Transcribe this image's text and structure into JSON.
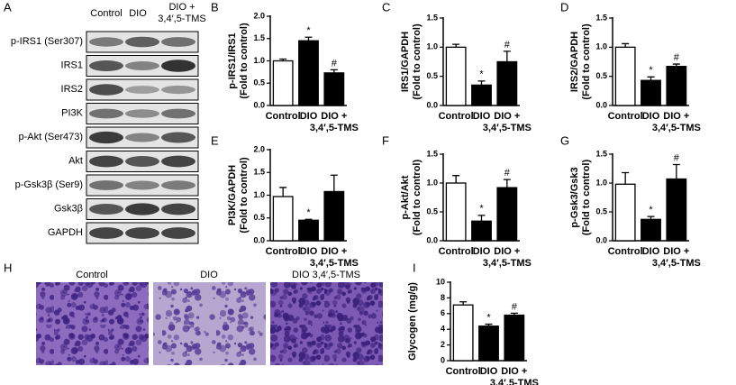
{
  "blot": {
    "panel": "A",
    "columns": [
      "Control",
      "DIO",
      [
        "DIO +",
        "3,4′,5-TMS"
      ]
    ],
    "rows": [
      "p-IRS1 (Ser307)",
      "IRS1",
      "IRS2",
      "PI3K",
      "p-Akt (Ser473)",
      "Akt",
      "p-Gsk3β (Ser9)",
      "Gsk3β",
      "GAPDH"
    ]
  },
  "histology": {
    "panel": "H",
    "images": [
      "Control",
      "DIO",
      "DIO 3,4′,5-TMS"
    ]
  },
  "chart_data": [
    {
      "type": "bar",
      "panel": "B",
      "ylabel": [
        "p-IRS1/IRS1",
        "(Fold to control)"
      ],
      "categories": [
        "Control",
        "DIO",
        [
          "DIO +",
          "3,4′,5-TMS"
        ]
      ],
      "values": [
        1.0,
        1.45,
        0.73
      ],
      "errors": [
        0.04,
        0.08,
        0.07
      ],
      "colors": [
        "#ffffff",
        "#000000",
        "#000000"
      ],
      "ylim": [
        0,
        2
      ],
      "yticks": [
        {
          "value": 0,
          "label": "0.0"
        },
        0.5,
        {
          "value": 1,
          "label": "1.0"
        },
        1.5,
        {
          "value": 2,
          "label": "2.0"
        }
      ],
      "annotations": [
        {
          "index": 1,
          "text": "*"
        },
        {
          "index": 2,
          "text": "#"
        }
      ]
    },
    {
      "type": "bar",
      "panel": "C",
      "ylabel": [
        "IRS1/GAPDH",
        "(Fold to control)"
      ],
      "categories": [
        "Control",
        "DIO",
        [
          "DIO +",
          "3,4′,5-TMS"
        ]
      ],
      "values": [
        1.0,
        0.35,
        0.75
      ],
      "errors": [
        0.05,
        0.07,
        0.18
      ],
      "colors": [
        "#ffffff",
        "#000000",
        "#000000"
      ],
      "ylim": [
        0,
        1.5
      ],
      "yticks": [
        {
          "value": 0,
          "label": "0.0"
        },
        0.5,
        {
          "value": 1,
          "label": "1.0"
        },
        1.5
      ],
      "annotations": [
        {
          "index": 1,
          "text": "*"
        },
        {
          "index": 2,
          "text": "#"
        }
      ]
    },
    {
      "type": "bar",
      "panel": "D",
      "ylabel": [
        "IRS2/GAPDH",
        "(Fold to control)"
      ],
      "categories": [
        "Control",
        "DIO",
        [
          "DIO +",
          "3,4′,5-TMS"
        ]
      ],
      "values": [
        1.0,
        0.43,
        0.67
      ],
      "errors": [
        0.06,
        0.06,
        0.04
      ],
      "colors": [
        "#ffffff",
        "#000000",
        "#000000"
      ],
      "ylim": [
        0,
        1.5
      ],
      "yticks": [
        {
          "value": 0,
          "label": "0.0"
        },
        0.5,
        {
          "value": 1,
          "label": "1.0"
        },
        1.5
      ],
      "annotations": [
        {
          "index": 1,
          "text": "*"
        },
        {
          "index": 2,
          "text": "#"
        }
      ]
    },
    {
      "type": "bar",
      "panel": "E",
      "ylabel": [
        "PI3K/GAPDH",
        "(Fold to control)"
      ],
      "categories": [
        "Control",
        "DIO",
        [
          "DIO +",
          "3,4′,5-TMS"
        ]
      ],
      "values": [
        0.97,
        0.45,
        1.08
      ],
      "errors": [
        0.2,
        0.02,
        0.36
      ],
      "colors": [
        "#ffffff",
        "#000000",
        "#000000"
      ],
      "ylim": [
        0,
        2
      ],
      "yticks": [
        {
          "value": 0,
          "label": "0.0"
        },
        0.5,
        {
          "value": 1,
          "label": "1.0"
        },
        1.5,
        {
          "value": 2,
          "label": "2.0"
        }
      ],
      "annotations": [
        {
          "index": 1,
          "text": "*"
        }
      ]
    },
    {
      "type": "bar",
      "panel": "F",
      "ylabel": [
        "p-Akt/Akt",
        "(Fold to control)"
      ],
      "categories": [
        "Control",
        "DIO",
        [
          "DIO +",
          "3,4′,5-TMS"
        ]
      ],
      "values": [
        1.0,
        0.34,
        0.92
      ],
      "errors": [
        0.13,
        0.1,
        0.14
      ],
      "colors": [
        "#ffffff",
        "#000000",
        "#000000"
      ],
      "ylim": [
        0,
        1.5
      ],
      "yticks": [
        {
          "value": 0,
          "label": "0.0"
        },
        0.5,
        {
          "value": 1,
          "label": "1.0"
        },
        1.5
      ],
      "annotations": [
        {
          "index": 1,
          "text": "*"
        },
        {
          "index": 2,
          "text": "#"
        }
      ]
    },
    {
      "type": "bar",
      "panel": "G",
      "ylabel": [
        "p-Gsk3/Gsk3",
        "(Fold to control)"
      ],
      "categories": [
        "Control",
        "DIO",
        [
          "DIO +",
          "3,4′,5-TMS"
        ]
      ],
      "values": [
        0.98,
        0.37,
        1.07
      ],
      "errors": [
        0.2,
        0.05,
        0.25
      ],
      "colors": [
        "#ffffff",
        "#000000",
        "#000000"
      ],
      "ylim": [
        0,
        1.5
      ],
      "yticks": [
        {
          "value": 0,
          "label": "0.0"
        },
        0.5,
        {
          "value": 1,
          "label": "1.0"
        },
        1.5
      ],
      "annotations": [
        {
          "index": 1,
          "text": "*"
        },
        {
          "index": 2,
          "text": "#"
        }
      ]
    },
    {
      "type": "bar",
      "panel": "I",
      "ylabel": [
        "Glycogen (mg/g)"
      ],
      "categories": [
        "Control",
        "DIO",
        [
          "DIO +",
          "3,4′,5-TMS"
        ]
      ],
      "values": [
        7.1,
        4.4,
        5.8
      ],
      "errors": [
        0.4,
        0.25,
        0.25
      ],
      "colors": [
        "#ffffff",
        "#000000",
        "#000000"
      ],
      "ylim": [
        0,
        10
      ],
      "yticks": [
        0,
        2,
        4,
        6,
        8,
        10
      ],
      "annotations": [
        {
          "index": 1,
          "text": "*"
        },
        {
          "index": 2,
          "text": "#"
        }
      ]
    }
  ]
}
